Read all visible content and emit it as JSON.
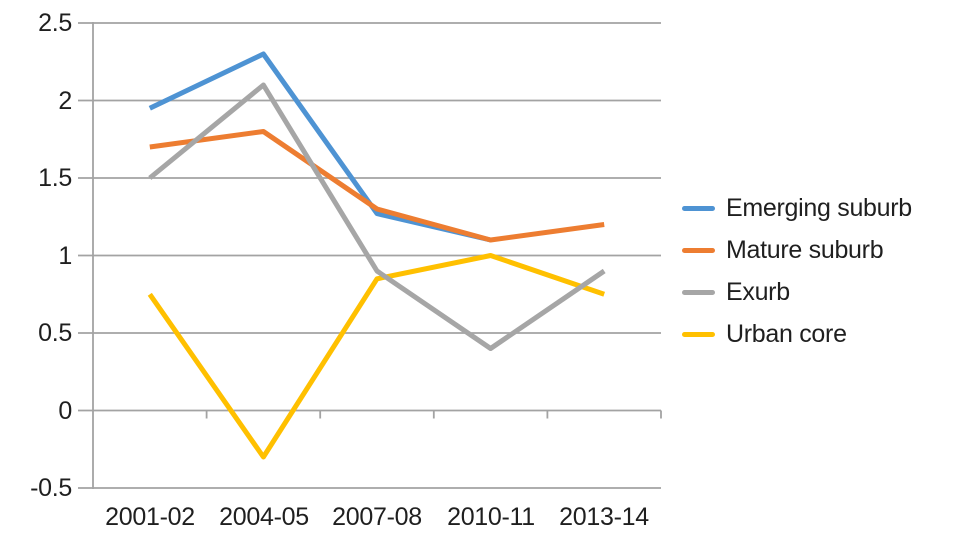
{
  "chart_data": {
    "type": "line",
    "title": "",
    "xlabel": "",
    "ylabel": "",
    "categories": [
      "2001-02",
      "2004-05",
      "2007-08",
      "2010-11",
      "2013-14"
    ],
    "series": [
      {
        "name": "Emerging suburb",
        "color": "#4E93D3",
        "values": [
          1.95,
          2.3,
          1.27,
          1.1,
          null
        ]
      },
      {
        "name": "Mature suburb",
        "color": "#ED7D31",
        "values": [
          1.7,
          1.8,
          1.3,
          1.1,
          1.2
        ]
      },
      {
        "name": "Exurb",
        "color": "#A6A6A6",
        "values": [
          1.5,
          2.1,
          0.9,
          0.4,
          0.9
        ]
      },
      {
        "name": "Urban core",
        "color": "#FFC000",
        "values": [
          0.75,
          -0.3,
          0.85,
          1.0,
          0.75
        ]
      }
    ],
    "ylim": [
      -0.5,
      2.5
    ],
    "ytick_labels": [
      "2.5",
      "2",
      "1.5",
      "1",
      "0.5",
      "0",
      "-0.5"
    ],
    "grid": true,
    "legend_position": "right",
    "gridline_color": "#A3A3A3",
    "text_color": "#1F1F1F"
  }
}
